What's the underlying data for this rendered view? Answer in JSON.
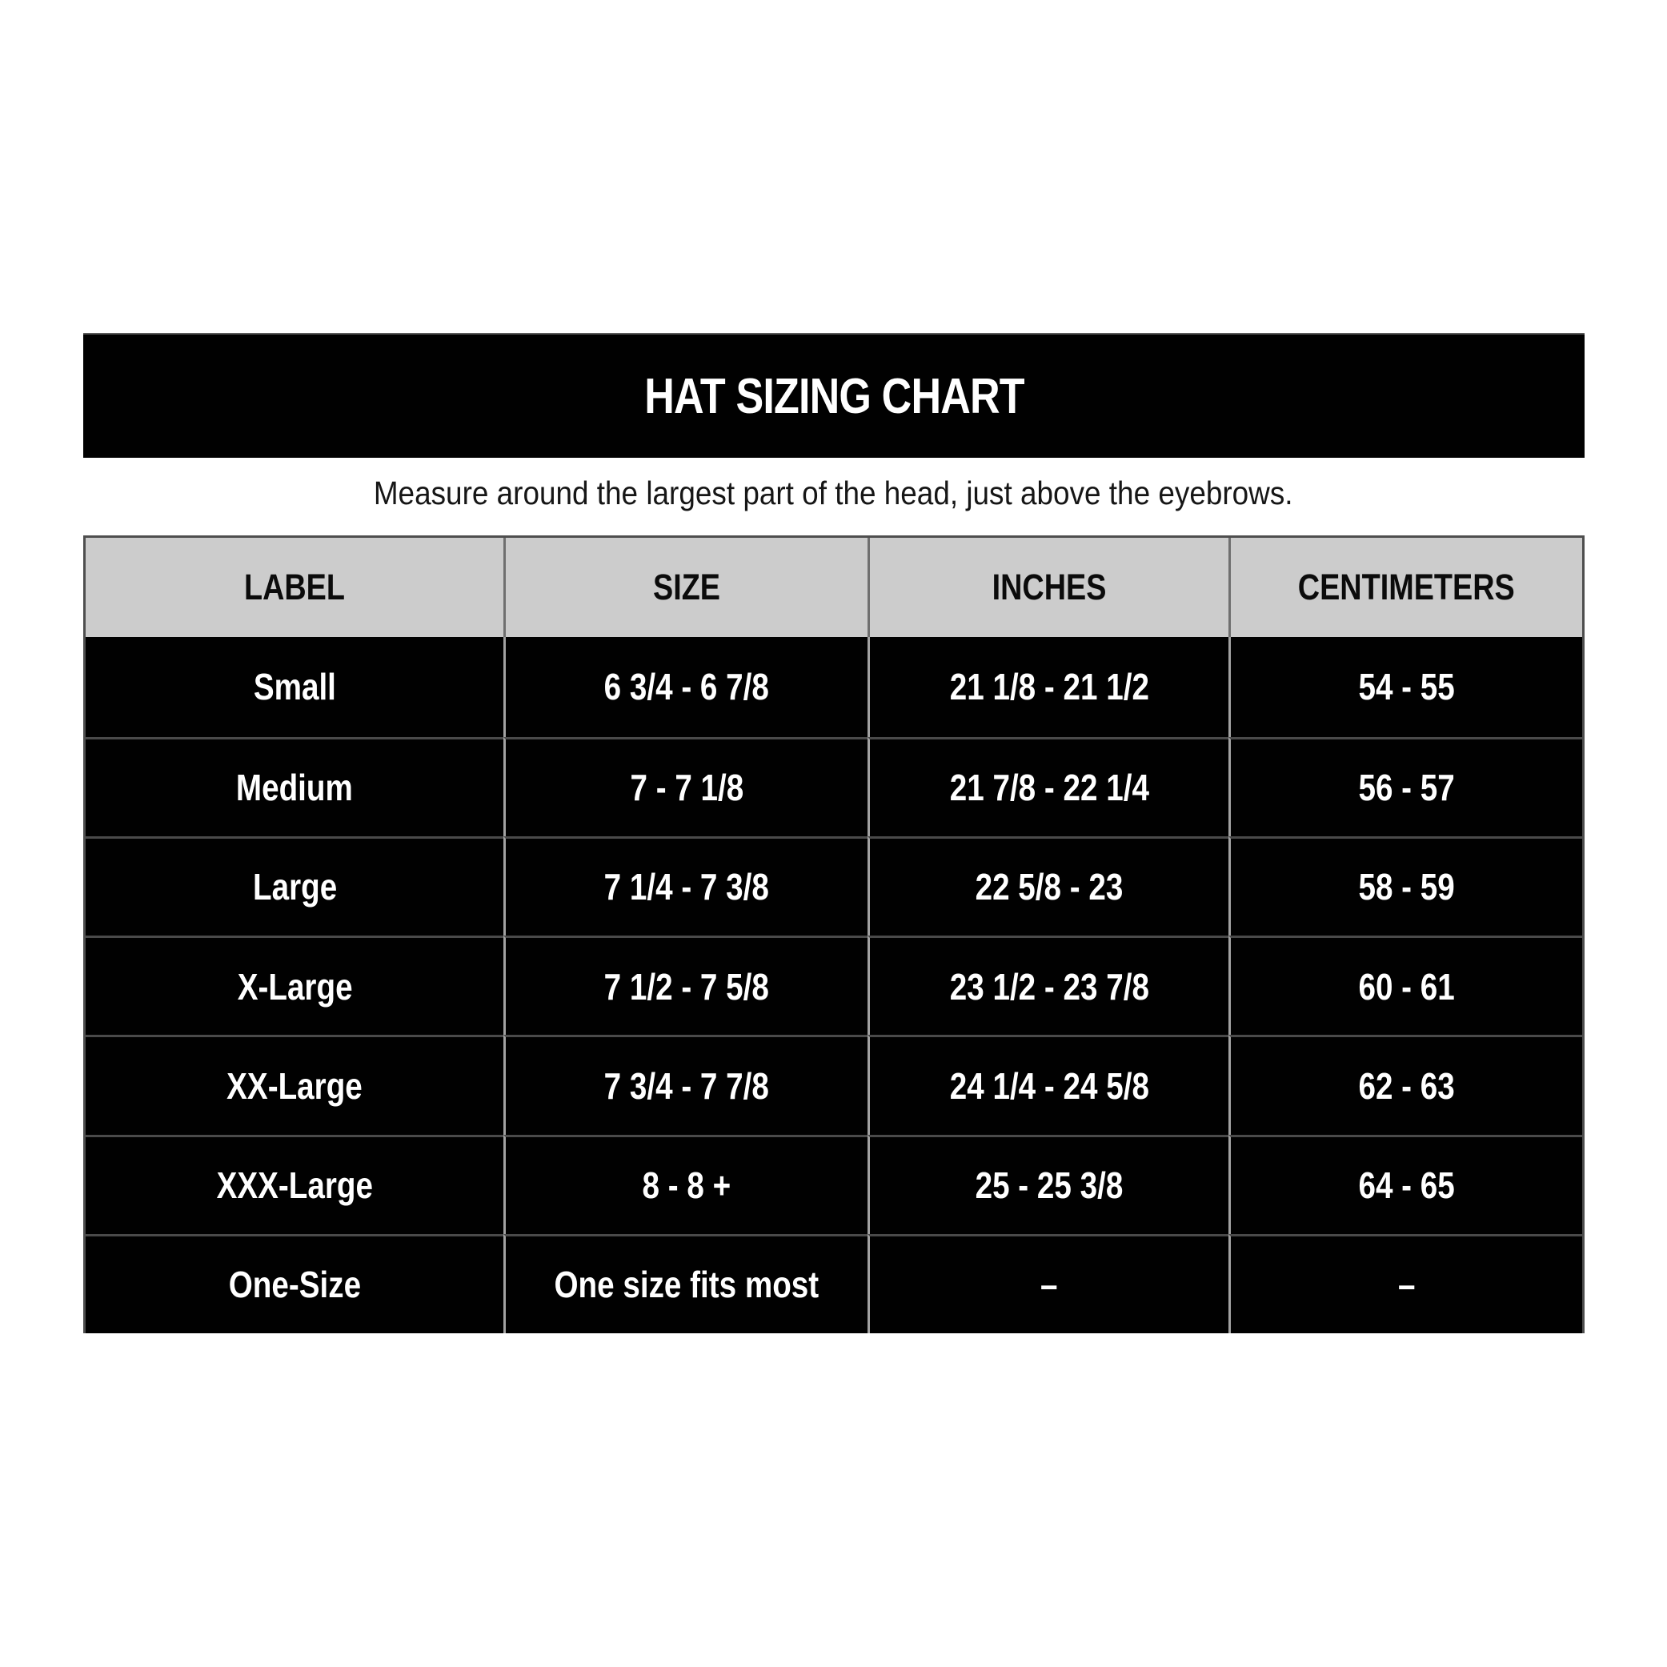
{
  "page": {
    "background_color": "#ffffff"
  },
  "banner": {
    "title": "HAT SIZING CHART",
    "bg_color": "#010101",
    "text_color": "#ffffff"
  },
  "subtitle": "Measure around the largest part of the head, just above the eyebrows.",
  "table": {
    "header_bg_color": "#cccccc",
    "header_text_color": "#0b0b0b",
    "row_bg_color": "#010101",
    "row_text_color": "#ffffff",
    "columns": [
      "LABEL",
      "SIZE",
      "INCHES",
      "CENTIMETERS"
    ],
    "rows": [
      [
        "Small",
        "6 3/4 - 6 7/8",
        "21 1/8 - 21 1/2",
        "54 - 55"
      ],
      [
        "Medium",
        "7 - 7 1/8",
        "21 7/8 - 22 1/4",
        "56 - 57"
      ],
      [
        "Large",
        "7 1/4 - 7 3/8",
        "22 5/8 - 23",
        "58 - 59"
      ],
      [
        "X-Large",
        "7 1/2 - 7 5/8",
        "23 1/2 - 23 7/8",
        "60 - 61"
      ],
      [
        "XX-Large",
        "7 3/4 - 7 7/8",
        "24 1/4 - 24 5/8",
        "62 - 63"
      ],
      [
        "XXX-Large",
        "8 - 8 +",
        "25 - 25 3/8",
        "64 - 65"
      ],
      [
        "One-Size",
        "One size fits most",
        "–",
        "–"
      ]
    ]
  },
  "chart_data": {
    "type": "table",
    "title": "HAT SIZING CHART",
    "note": "Measure around the largest part of the head, just above the eyebrows.",
    "columns": [
      "LABEL",
      "SIZE",
      "INCHES",
      "CENTIMETERS"
    ],
    "rows": [
      [
        "Small",
        "6 3/4 - 6 7/8",
        "21 1/8 - 21 1/2",
        "54 - 55"
      ],
      [
        "Medium",
        "7 - 7 1/8",
        "21 7/8 - 22 1/4",
        "56 - 57"
      ],
      [
        "Large",
        "7 1/4 - 7 3/8",
        "22 5/8 - 23",
        "58 - 59"
      ],
      [
        "X-Large",
        "7 1/2 - 7 5/8",
        "23 1/2 - 23 7/8",
        "60 - 61"
      ],
      [
        "XX-Large",
        "7 3/4 - 7 7/8",
        "24 1/4 - 24 5/8",
        "62 - 63"
      ],
      [
        "XXX-Large",
        "8 - 8 +",
        "25 - 25 3/8",
        "64 - 65"
      ],
      [
        "One-Size",
        "One size fits most",
        "–",
        "–"
      ]
    ]
  }
}
